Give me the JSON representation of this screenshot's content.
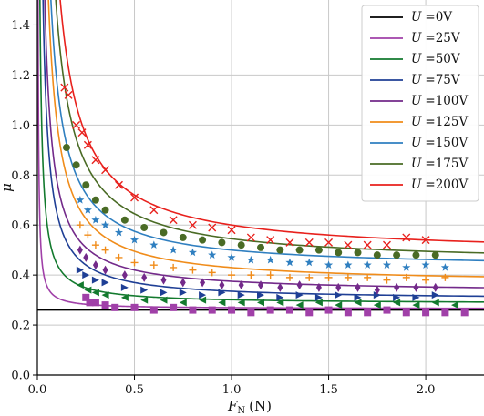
{
  "chart_data": {
    "type": "scatter",
    "xlabel": "F_N (N)",
    "xlabel_main": "F",
    "xlabel_sub": "N",
    "xlabel_unit": "(N)",
    "ylabel": "μ",
    "xlim": [
      0.0,
      2.3
    ],
    "ylim": [
      0.0,
      1.5
    ],
    "xticks": [
      "0.0",
      "0.5",
      "1.0",
      "1.5",
      "2.0"
    ],
    "yticks": [
      "0.0",
      "0.2",
      "0.4",
      "0.6",
      "0.8",
      "1.0",
      "1.2",
      "1.4"
    ],
    "grid": true,
    "legend_position": "top-right",
    "legend_var": "U",
    "series": [
      {
        "name": "U =0V",
        "label": "=0V",
        "color": "#000000",
        "marker": "none",
        "fit": {
          "c": 0.26,
          "a": 0.0
        },
        "points": []
      },
      {
        "name": "U =25V",
        "label": "=25V",
        "color": "#a040a8",
        "marker": "square",
        "fit": {
          "c": 0.265,
          "a": 0.0045
        },
        "points": [
          [
            0.25,
            0.31
          ],
          [
            0.27,
            0.29
          ],
          [
            0.3,
            0.29
          ],
          [
            0.35,
            0.28
          ],
          [
            0.4,
            0.27
          ],
          [
            0.5,
            0.27
          ],
          [
            0.6,
            0.26
          ],
          [
            0.7,
            0.27
          ],
          [
            0.8,
            0.26
          ],
          [
            0.9,
            0.26
          ],
          [
            1.0,
            0.26
          ],
          [
            1.1,
            0.25
          ],
          [
            1.2,
            0.26
          ],
          [
            1.3,
            0.26
          ],
          [
            1.4,
            0.25
          ],
          [
            1.5,
            0.26
          ],
          [
            1.6,
            0.25
          ],
          [
            1.7,
            0.25
          ],
          [
            1.8,
            0.26
          ],
          [
            1.9,
            0.25
          ],
          [
            2.0,
            0.25
          ],
          [
            2.1,
            0.25
          ],
          [
            2.2,
            0.25
          ]
        ]
      },
      {
        "name": "U =50V",
        "label": "=50V",
        "color": "#137a2e",
        "marker": "triangle-left",
        "fit": {
          "c": 0.285,
          "a": 0.016
        },
        "points": [
          [
            0.22,
            0.36
          ],
          [
            0.26,
            0.34
          ],
          [
            0.3,
            0.33
          ],
          [
            0.35,
            0.32
          ],
          [
            0.45,
            0.31
          ],
          [
            0.55,
            0.3
          ],
          [
            0.65,
            0.3
          ],
          [
            0.75,
            0.29
          ],
          [
            0.85,
            0.3
          ],
          [
            0.95,
            0.29
          ],
          [
            1.05,
            0.29
          ],
          [
            1.15,
            0.29
          ],
          [
            1.25,
            0.29
          ],
          [
            1.35,
            0.28
          ],
          [
            1.45,
            0.29
          ],
          [
            1.55,
            0.28
          ],
          [
            1.65,
            0.29
          ],
          [
            1.75,
            0.28
          ],
          [
            1.85,
            0.29
          ],
          [
            1.95,
            0.28
          ],
          [
            2.05,
            0.29
          ],
          [
            2.15,
            0.28
          ]
        ]
      },
      {
        "name": "U =75V",
        "label": "=75V",
        "color": "#1f3f95",
        "marker": "triangle-right",
        "fit": {
          "c": 0.3,
          "a": 0.035
        },
        "points": [
          [
            0.22,
            0.42
          ],
          [
            0.25,
            0.4
          ],
          [
            0.3,
            0.38
          ],
          [
            0.35,
            0.37
          ],
          [
            0.45,
            0.35
          ],
          [
            0.55,
            0.34
          ],
          [
            0.65,
            0.33
          ],
          [
            0.75,
            0.33
          ],
          [
            0.85,
            0.32
          ],
          [
            0.95,
            0.33
          ],
          [
            1.05,
            0.32
          ],
          [
            1.15,
            0.32
          ],
          [
            1.25,
            0.31
          ],
          [
            1.35,
            0.32
          ],
          [
            1.45,
            0.31
          ],
          [
            1.55,
            0.32
          ],
          [
            1.65,
            0.31
          ],
          [
            1.75,
            0.32
          ],
          [
            1.85,
            0.31
          ],
          [
            1.95,
            0.31
          ],
          [
            2.05,
            0.32
          ]
        ]
      },
      {
        "name": "U =100V",
        "label": "=100V",
        "color": "#732a8a",
        "marker": "diamond",
        "fit": {
          "c": 0.33,
          "a": 0.045
        },
        "points": [
          [
            0.22,
            0.5
          ],
          [
            0.25,
            0.47
          ],
          [
            0.3,
            0.44
          ],
          [
            0.35,
            0.42
          ],
          [
            0.45,
            0.4
          ],
          [
            0.55,
            0.39
          ],
          [
            0.65,
            0.38
          ],
          [
            0.75,
            0.37
          ],
          [
            0.85,
            0.37
          ],
          [
            0.95,
            0.36
          ],
          [
            1.05,
            0.36
          ],
          [
            1.15,
            0.36
          ],
          [
            1.25,
            0.35
          ],
          [
            1.35,
            0.36
          ],
          [
            1.45,
            0.35
          ],
          [
            1.55,
            0.35
          ],
          [
            1.65,
            0.35
          ],
          [
            1.75,
            0.34
          ],
          [
            1.85,
            0.35
          ],
          [
            1.95,
            0.35
          ],
          [
            2.05,
            0.35
          ]
        ]
      },
      {
        "name": "U =125V",
        "label": "=125V",
        "color": "#f08c1a",
        "marker": "plus",
        "fit": {
          "c": 0.365,
          "a": 0.065
        },
        "points": [
          [
            0.22,
            0.6
          ],
          [
            0.26,
            0.56
          ],
          [
            0.3,
            0.52
          ],
          [
            0.35,
            0.5
          ],
          [
            0.42,
            0.47
          ],
          [
            0.5,
            0.45
          ],
          [
            0.6,
            0.44
          ],
          [
            0.7,
            0.43
          ],
          [
            0.8,
            0.42
          ],
          [
            0.9,
            0.41
          ],
          [
            1.0,
            0.4
          ],
          [
            1.1,
            0.4
          ],
          [
            1.2,
            0.4
          ],
          [
            1.3,
            0.39
          ],
          [
            1.4,
            0.39
          ],
          [
            1.5,
            0.39
          ],
          [
            1.6,
            0.39
          ],
          [
            1.7,
            0.39
          ],
          [
            1.8,
            0.38
          ],
          [
            1.9,
            0.39
          ],
          [
            2.0,
            0.38
          ],
          [
            2.1,
            0.39
          ]
        ]
      },
      {
        "name": "U =150V",
        "label": "=150V",
        "color": "#2f7fc0",
        "marker": "star",
        "fit": {
          "c": 0.425,
          "a": 0.075
        },
        "points": [
          [
            0.22,
            0.7
          ],
          [
            0.26,
            0.66
          ],
          [
            0.3,
            0.62
          ],
          [
            0.35,
            0.6
          ],
          [
            0.42,
            0.57
          ],
          [
            0.5,
            0.54
          ],
          [
            0.6,
            0.52
          ],
          [
            0.7,
            0.5
          ],
          [
            0.8,
            0.49
          ],
          [
            0.9,
            0.48
          ],
          [
            1.0,
            0.47
          ],
          [
            1.1,
            0.46
          ],
          [
            1.2,
            0.46
          ],
          [
            1.3,
            0.45
          ],
          [
            1.4,
            0.45
          ],
          [
            1.5,
            0.44
          ],
          [
            1.6,
            0.44
          ],
          [
            1.7,
            0.44
          ],
          [
            1.8,
            0.44
          ],
          [
            1.9,
            0.43
          ],
          [
            2.0,
            0.44
          ],
          [
            2.1,
            0.43
          ]
        ]
      },
      {
        "name": "U =175V",
        "label": "=175V",
        "color": "#4a6b25",
        "marker": "circle",
        "fit": {
          "c": 0.445,
          "a": 0.1
        },
        "points": [
          [
            0.15,
            0.91
          ],
          [
            0.2,
            0.84
          ],
          [
            0.25,
            0.76
          ],
          [
            0.3,
            0.7
          ],
          [
            0.35,
            0.66
          ],
          [
            0.45,
            0.62
          ],
          [
            0.55,
            0.59
          ],
          [
            0.65,
            0.57
          ],
          [
            0.75,
            0.55
          ],
          [
            0.85,
            0.54
          ],
          [
            0.95,
            0.53
          ],
          [
            1.05,
            0.52
          ],
          [
            1.15,
            0.51
          ],
          [
            1.25,
            0.5
          ],
          [
            1.35,
            0.5
          ],
          [
            1.45,
            0.5
          ],
          [
            1.55,
            0.49
          ],
          [
            1.65,
            0.49
          ],
          [
            1.75,
            0.48
          ],
          [
            1.85,
            0.48
          ],
          [
            1.95,
            0.48
          ],
          [
            2.05,
            0.48
          ]
        ]
      },
      {
        "name": "U =200V",
        "label": "=200V",
        "color": "#e8211d",
        "marker": "x",
        "fit": {
          "c": 0.48,
          "a": 0.12
        },
        "points": [
          [
            0.14,
            1.15
          ],
          [
            0.16,
            1.12
          ],
          [
            0.2,
            1.0
          ],
          [
            0.23,
            0.97
          ],
          [
            0.26,
            0.92
          ],
          [
            0.3,
            0.86
          ],
          [
            0.35,
            0.82
          ],
          [
            0.42,
            0.76
          ],
          [
            0.5,
            0.71
          ],
          [
            0.6,
            0.66
          ],
          [
            0.7,
            0.62
          ],
          [
            0.8,
            0.6
          ],
          [
            0.9,
            0.59
          ],
          [
            1.0,
            0.58
          ],
          [
            1.1,
            0.55
          ],
          [
            1.2,
            0.54
          ],
          [
            1.3,
            0.53
          ],
          [
            1.4,
            0.53
          ],
          [
            1.5,
            0.53
          ],
          [
            1.6,
            0.52
          ],
          [
            1.7,
            0.52
          ],
          [
            1.8,
            0.52
          ],
          [
            1.9,
            0.55
          ],
          [
            2.0,
            0.54
          ]
        ]
      }
    ]
  }
}
